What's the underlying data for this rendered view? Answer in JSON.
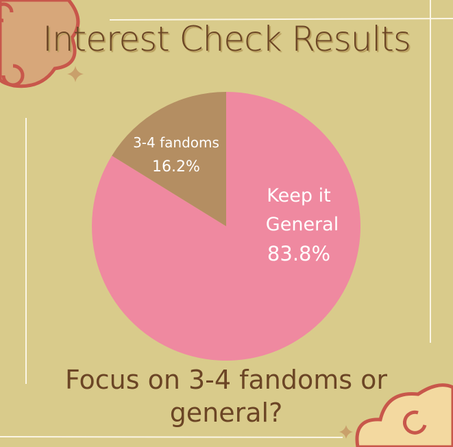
{
  "title": "Interest Check Results",
  "question": "Focus on 3-4 fandoms or general?",
  "colors": {
    "background": "#d9cb8b",
    "text": "#6b4525",
    "pink": "#ef89a0",
    "brown": "#b48e62"
  },
  "chart_data": {
    "type": "pie",
    "title": "Interest Check Results",
    "slices": [
      {
        "label_line1": "Keep it",
        "label_line2": "General",
        "name": "Keep it General",
        "value": 83.8,
        "value_label": "83.8%",
        "color": "#ef89a0"
      },
      {
        "label_line1": "3-4 fandoms",
        "name": "3-4 fandoms",
        "value": 16.2,
        "value_label": "16.2%",
        "color": "#b48e62"
      }
    ],
    "legend": "none"
  }
}
